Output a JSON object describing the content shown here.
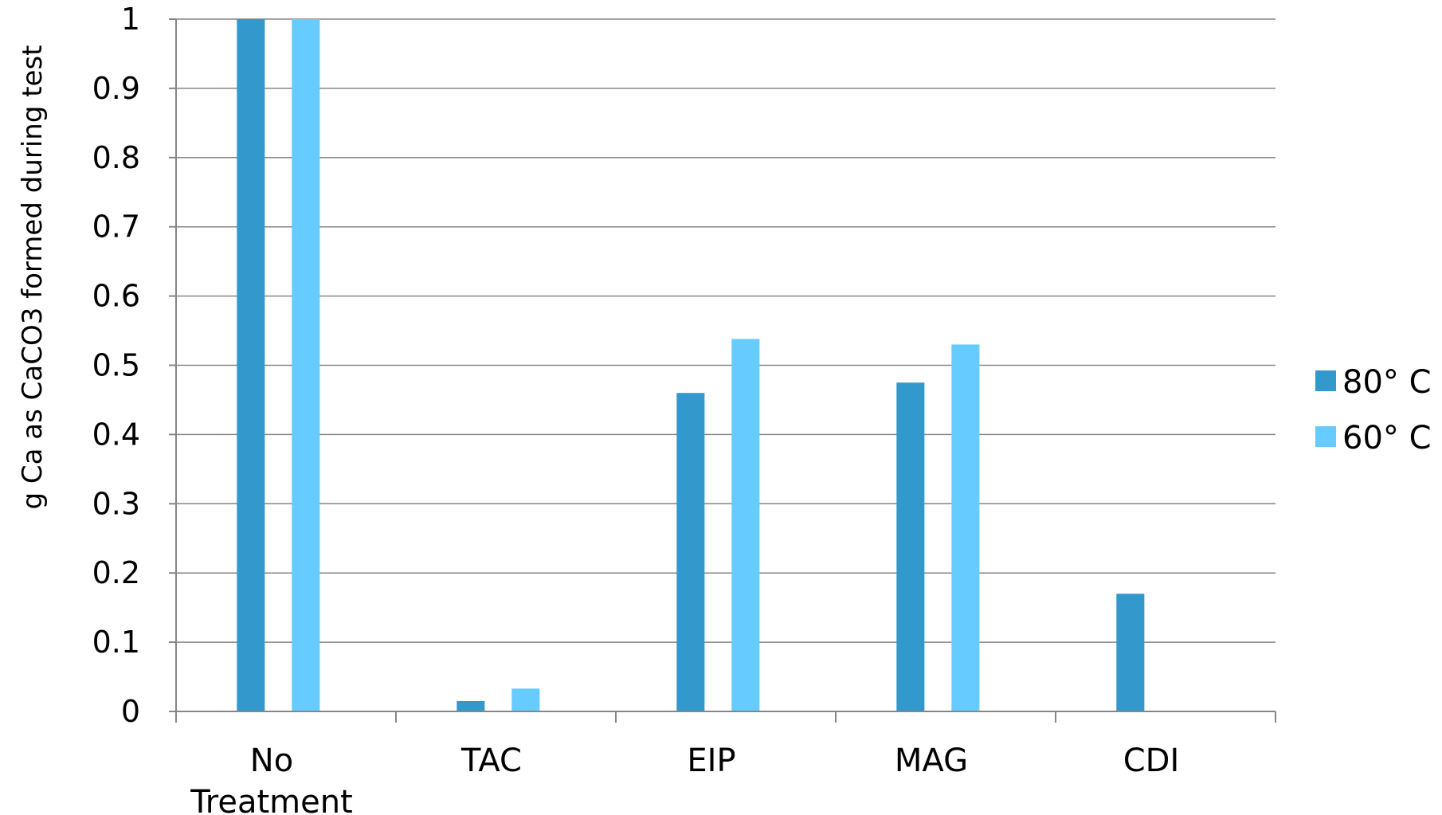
{
  "chart_data": {
    "type": "bar",
    "title": "",
    "xlabel": "",
    "ylabel": "g Ca as CaCO3 formed during test",
    "categories": [
      [
        "No",
        "Treatment"
      ],
      [
        "TAC"
      ],
      [
        "EIP"
      ],
      [
        "MAG"
      ],
      [
        "CDI"
      ]
    ],
    "series": [
      {
        "name": "80° C",
        "color": "#3399CC",
        "values": [
          1.0,
          0.015,
          0.46,
          0.475,
          0.17
        ]
      },
      {
        "name": "60° C",
        "color": "#66CCFF",
        "values": [
          1.0,
          0.033,
          0.538,
          0.53,
          0
        ]
      }
    ],
    "ylim": [
      0,
      1
    ],
    "yticks": [
      "0",
      "0.1",
      "0.2",
      "0.3",
      "0.4",
      "0.5",
      "0.6",
      "0.7",
      "0.8",
      "0.9",
      "1"
    ],
    "grid": true,
    "legend_position": "right"
  }
}
